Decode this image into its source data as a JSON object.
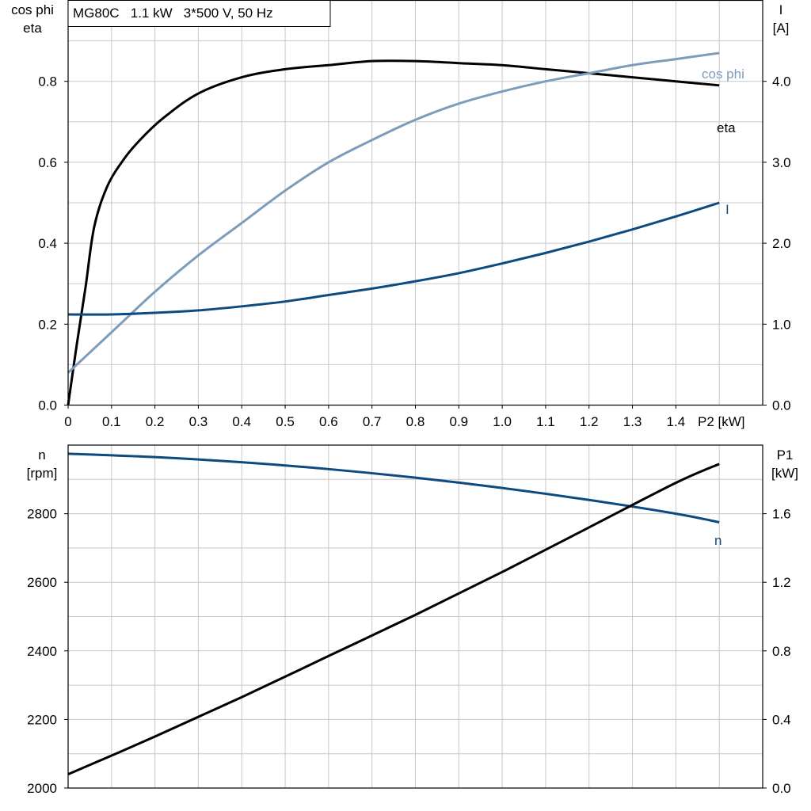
{
  "chart_data": [
    {
      "type": "line",
      "title": "MG80C   1.1 kW   3*500 V, 50 Hz",
      "xlabel": "P2 [kW]",
      "ylabel_left": [
        "cos phi",
        "eta"
      ],
      "ylabel_right": [
        "I",
        "[A]"
      ],
      "xlim": [
        0,
        1.6
      ],
      "ylim_left": [
        0,
        1.0
      ],
      "ylim_right": [
        0,
        5.0
      ],
      "x_ticks": [
        "0",
        "0.1",
        "0.2",
        "0.3",
        "0.4",
        "0.5",
        "0.6",
        "0.7",
        "0.8",
        "0.9",
        "1.0",
        "1.1",
        "1.2",
        "1.3",
        "1.4"
      ],
      "y_left_ticks": [
        "0.0",
        "0.2",
        "0.4",
        "0.6",
        "0.8"
      ],
      "y_right_ticks": [
        "0.0",
        "1.0",
        "2.0",
        "3.0",
        "4.0"
      ],
      "grid": true,
      "series": [
        {
          "name": "eta",
          "axis": "left",
          "color": "#000000",
          "x": [
            0.0,
            0.02,
            0.04,
            0.06,
            0.09,
            0.13,
            0.17,
            0.22,
            0.3,
            0.4,
            0.5,
            0.6,
            0.7,
            0.8,
            0.9,
            1.0,
            1.1,
            1.2,
            1.3,
            1.4,
            1.5
          ],
          "y": [
            0.0,
            0.15,
            0.29,
            0.44,
            0.54,
            0.61,
            0.66,
            0.71,
            0.77,
            0.81,
            0.83,
            0.84,
            0.85,
            0.85,
            0.845,
            0.84,
            0.83,
            0.82,
            0.81,
            0.8,
            0.79
          ]
        },
        {
          "name": "cos phi",
          "axis": "left",
          "color": "#7b9dbb",
          "x": [
            0.0,
            0.1,
            0.2,
            0.3,
            0.4,
            0.5,
            0.6,
            0.7,
            0.8,
            0.9,
            1.0,
            1.1,
            1.2,
            1.3,
            1.4,
            1.5
          ],
          "y": [
            0.08,
            0.18,
            0.28,
            0.37,
            0.45,
            0.53,
            0.6,
            0.655,
            0.705,
            0.745,
            0.775,
            0.8,
            0.82,
            0.84,
            0.855,
            0.87
          ]
        },
        {
          "name": "I",
          "axis": "right",
          "color": "#0d4a80",
          "x": [
            0.0,
            0.1,
            0.2,
            0.3,
            0.4,
            0.5,
            0.6,
            0.7,
            0.8,
            0.9,
            1.0,
            1.1,
            1.2,
            1.3,
            1.4,
            1.5
          ],
          "y": [
            1.12,
            1.12,
            1.14,
            1.17,
            1.22,
            1.28,
            1.36,
            1.44,
            1.53,
            1.63,
            1.75,
            1.88,
            2.02,
            2.17,
            2.33,
            2.5
          ]
        }
      ]
    },
    {
      "type": "line",
      "ylabel_left": [
        "n",
        "[rpm]"
      ],
      "ylabel_right": [
        "P1",
        "[kW]"
      ],
      "xlim": [
        0,
        1.6
      ],
      "ylim_left": [
        2000,
        3000
      ],
      "ylim_right": [
        0.0,
        2.0
      ],
      "y_left_ticks": [
        "2000",
        "2200",
        "2400",
        "2600",
        "2800"
      ],
      "y_right_ticks": [
        "0.0",
        "0.4",
        "0.8",
        "1.2",
        "1.6"
      ],
      "grid": true,
      "series": [
        {
          "name": "n",
          "axis": "left",
          "color": "#0d4a80",
          "x": [
            0.0,
            0.2,
            0.4,
            0.6,
            0.8,
            1.0,
            1.2,
            1.4,
            1.5
          ],
          "y": [
            2975,
            2965,
            2950,
            2930,
            2905,
            2875,
            2840,
            2800,
            2775
          ]
        },
        {
          "name": "",
          "axis": "right",
          "color": "#000000",
          "x": [
            0.0,
            0.2,
            0.4,
            0.6,
            0.8,
            1.0,
            1.2,
            1.4,
            1.5
          ],
          "y": [
            0.08,
            0.3,
            0.53,
            0.77,
            1.01,
            1.26,
            1.52,
            1.78,
            1.89
          ]
        }
      ]
    }
  ]
}
